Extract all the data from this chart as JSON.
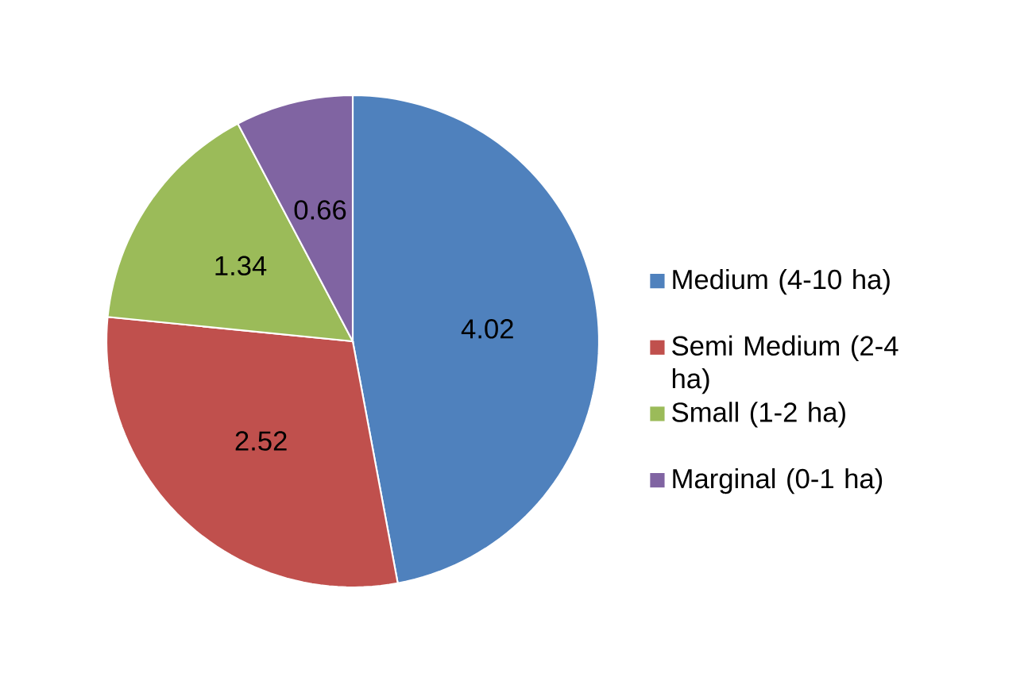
{
  "chart_data": {
    "type": "pie",
    "categories": [
      "Medium (4-10 ha)",
      "Semi Medium (2-4 ha)",
      "Small (1-2 ha)",
      "Marginal (0-1 ha)"
    ],
    "values": [
      4.02,
      2.52,
      1.34,
      0.66
    ],
    "colors": [
      "#4f81bd",
      "#c0504d",
      "#9bbb59",
      "#8064a2"
    ],
    "data_labels": true,
    "legend": "right"
  }
}
